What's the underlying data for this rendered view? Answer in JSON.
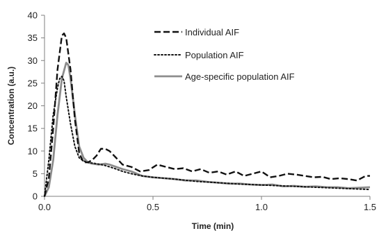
{
  "chart_data": {
    "type": "line",
    "xlabel": "Time (min)",
    "ylabel": "Concentration (a.u.)",
    "xlim": [
      0,
      1.5
    ],
    "ylim": [
      0,
      40
    ],
    "x_ticks": [
      "0.0",
      "0.5",
      "1.0",
      "1.5"
    ],
    "y_ticks": [
      "0",
      "5",
      "10",
      "15",
      "20",
      "25",
      "30",
      "35",
      "40"
    ],
    "grid": false,
    "legend_position": "top-right",
    "series": [
      {
        "name": "Individual AIF",
        "style": "dashed",
        "color": "#111111",
        "x": [
          0,
          0.02,
          0.04,
          0.06,
          0.08,
          0.09,
          0.1,
          0.12,
          0.14,
          0.16,
          0.18,
          0.2,
          0.22,
          0.24,
          0.26,
          0.28,
          0.3,
          0.33,
          0.36,
          0.4,
          0.44,
          0.48,
          0.52,
          0.56,
          0.6,
          0.64,
          0.68,
          0.72,
          0.76,
          0.8,
          0.84,
          0.88,
          0.92,
          0.96,
          1.0,
          1.04,
          1.08,
          1.12,
          1.16,
          1.2,
          1.24,
          1.28,
          1.32,
          1.36,
          1.4,
          1.44,
          1.48,
          1.5
        ],
        "y": [
          0,
          4,
          15,
          28,
          35.5,
          36,
          35,
          28,
          17,
          9.5,
          7.5,
          7.5,
          8,
          9,
          10.5,
          10.5,
          10,
          8.5,
          7,
          6.5,
          5.5,
          5.8,
          7,
          6.5,
          6,
          6.2,
          5.5,
          6,
          5.2,
          5.5,
          4.8,
          5.5,
          4.5,
          5,
          5.5,
          4.2,
          4.5,
          5,
          4.8,
          4.5,
          4.2,
          4.3,
          3.8,
          4,
          3.8,
          3.5,
          4.5,
          4.5
        ]
      },
      {
        "name": "Population AIF",
        "style": "dotted",
        "color": "#111111",
        "x": [
          0,
          0.02,
          0.04,
          0.06,
          0.07,
          0.08,
          0.09,
          0.1,
          0.12,
          0.14,
          0.16,
          0.18,
          0.2,
          0.24,
          0.28,
          0.32,
          0.36,
          0.4,
          0.45,
          0.5,
          0.6,
          0.7,
          0.8,
          0.9,
          1.0,
          1.1,
          1.2,
          1.3,
          1.4,
          1.5
        ],
        "y": [
          0,
          8,
          18,
          24,
          26,
          26.5,
          25.5,
          22,
          16,
          11,
          8.5,
          7.8,
          7.5,
          7.2,
          6.8,
          6.2,
          5.5,
          5,
          4.5,
          4.2,
          3.8,
          3.3,
          3,
          2.7,
          2.5,
          2.3,
          2.1,
          1.9,
          1.7,
          1.5
        ]
      },
      {
        "name": "Age-specific population AIF",
        "style": "solid",
        "color": "#8c8c8c",
        "x": [
          0,
          0.02,
          0.04,
          0.06,
          0.08,
          0.1,
          0.11,
          0.12,
          0.14,
          0.16,
          0.18,
          0.2,
          0.22,
          0.25,
          0.28,
          0.3,
          0.33,
          0.36,
          0.4,
          0.45,
          0.5,
          0.55,
          0.6,
          0.65,
          0.7,
          0.75,
          0.8,
          0.85,
          0.9,
          0.95,
          1.0,
          1.05,
          1.1,
          1.15,
          1.2,
          1.25,
          1.3,
          1.35,
          1.4,
          1.45,
          1.5
        ],
        "y": [
          0,
          2,
          8,
          18,
          26,
          29.5,
          29,
          26,
          18,
          11,
          8.5,
          7.5,
          7.2,
          7,
          7.2,
          7,
          6.5,
          6,
          5.5,
          4.5,
          4.2,
          4,
          3.8,
          3.5,
          3.5,
          3.2,
          3,
          2.8,
          2.8,
          2.6,
          2.5,
          2.6,
          2.2,
          2.3,
          2.1,
          2.2,
          2,
          2,
          1.8,
          1.9,
          2
        ]
      }
    ]
  }
}
